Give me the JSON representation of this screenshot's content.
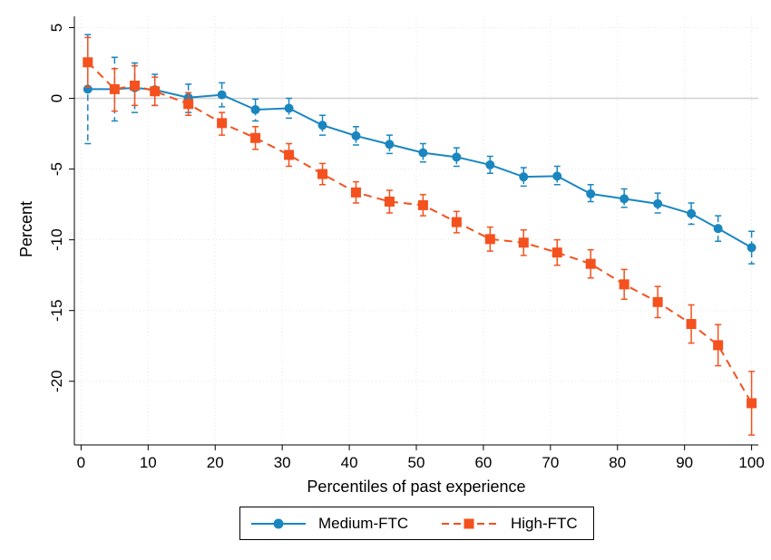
{
  "chart_data": {
    "type": "line",
    "title": "",
    "xlabel": "Percentiles of past experience",
    "ylabel": "Percent",
    "xlim": [
      -1,
      101
    ],
    "ylim": [
      -24.5,
      5.8
    ],
    "xticks": [
      0,
      10,
      20,
      30,
      40,
      50,
      60,
      70,
      80,
      90,
      100
    ],
    "xtick_labels": [
      "0",
      "10",
      "20",
      "30",
      "40",
      "50",
      "60",
      "70",
      "80",
      "90",
      "100"
    ],
    "yticks": [
      5,
      0,
      -5,
      -10,
      -15,
      -20
    ],
    "ytick_labels": [
      "5",
      "0",
      "-5",
      "-10",
      "-15",
      "-20"
    ],
    "grid": true,
    "reference_line_y": 0,
    "legend_position": "bottom",
    "series": [
      {
        "name": "Medium-FTC",
        "color": "#1a86c0",
        "marker": "circle",
        "line": "solid",
        "x": [
          1,
          5,
          8,
          11,
          16,
          21,
          26,
          31,
          36,
          41,
          46,
          51,
          56,
          61,
          66,
          71,
          76,
          81,
          86,
          91,
          95,
          100
        ],
        "y": [
          0.65,
          0.65,
          0.75,
          0.6,
          0.05,
          0.25,
          -0.8,
          -0.7,
          -1.9,
          -2.65,
          -3.25,
          -3.85,
          -4.15,
          -4.7,
          -5.55,
          -5.5,
          -6.75,
          -7.1,
          -7.45,
          -8.15,
          -9.2,
          -10.55
        ],
        "lower": [
          -3.2,
          -1.6,
          -1.0,
          -0.5,
          -1.0,
          -0.6,
          -1.6,
          -1.4,
          -2.6,
          -3.3,
          -3.9,
          -4.5,
          -4.8,
          -5.3,
          -6.2,
          -6.1,
          -7.3,
          -7.7,
          -8.1,
          -8.9,
          -10.1,
          -11.7
        ],
        "upper": [
          4.5,
          2.9,
          2.5,
          1.7,
          1.0,
          1.1,
          -0.05,
          0.0,
          -1.2,
          -2.0,
          -2.6,
          -3.2,
          -3.5,
          -4.1,
          -4.9,
          -4.8,
          -6.1,
          -6.4,
          -6.7,
          -7.4,
          -8.3,
          -9.4
        ]
      },
      {
        "name": "High-FTC",
        "color": "#f4511e",
        "marker": "square",
        "line": "dashed",
        "x": [
          1,
          5,
          8,
          11,
          16,
          21,
          26,
          31,
          36,
          41,
          46,
          51,
          56,
          61,
          66,
          71,
          76,
          81,
          86,
          91,
          95,
          100
        ],
        "y": [
          2.55,
          0.65,
          0.9,
          0.5,
          -0.4,
          -1.75,
          -2.8,
          -4.0,
          -5.35,
          -6.65,
          -7.3,
          -7.55,
          -8.75,
          -9.95,
          -10.2,
          -10.9,
          -11.7,
          -13.15,
          -14.4,
          -15.95,
          -17.45,
          -21.55
        ],
        "lower": [
          0.8,
          -0.9,
          -0.5,
          -0.5,
          -1.2,
          -2.6,
          -3.6,
          -4.8,
          -6.1,
          -7.4,
          -8.1,
          -8.3,
          -9.5,
          -10.8,
          -11.1,
          -11.8,
          -12.7,
          -14.2,
          -15.5,
          -17.3,
          -18.9,
          -23.8
        ],
        "upper": [
          4.3,
          2.1,
          2.3,
          1.5,
          0.4,
          -1.0,
          -2.0,
          -3.2,
          -4.6,
          -5.9,
          -6.5,
          -6.8,
          -8.0,
          -9.1,
          -9.3,
          -10.0,
          -10.7,
          -12.1,
          -13.3,
          -14.6,
          -16.0,
          -19.3
        ]
      }
    ]
  }
}
